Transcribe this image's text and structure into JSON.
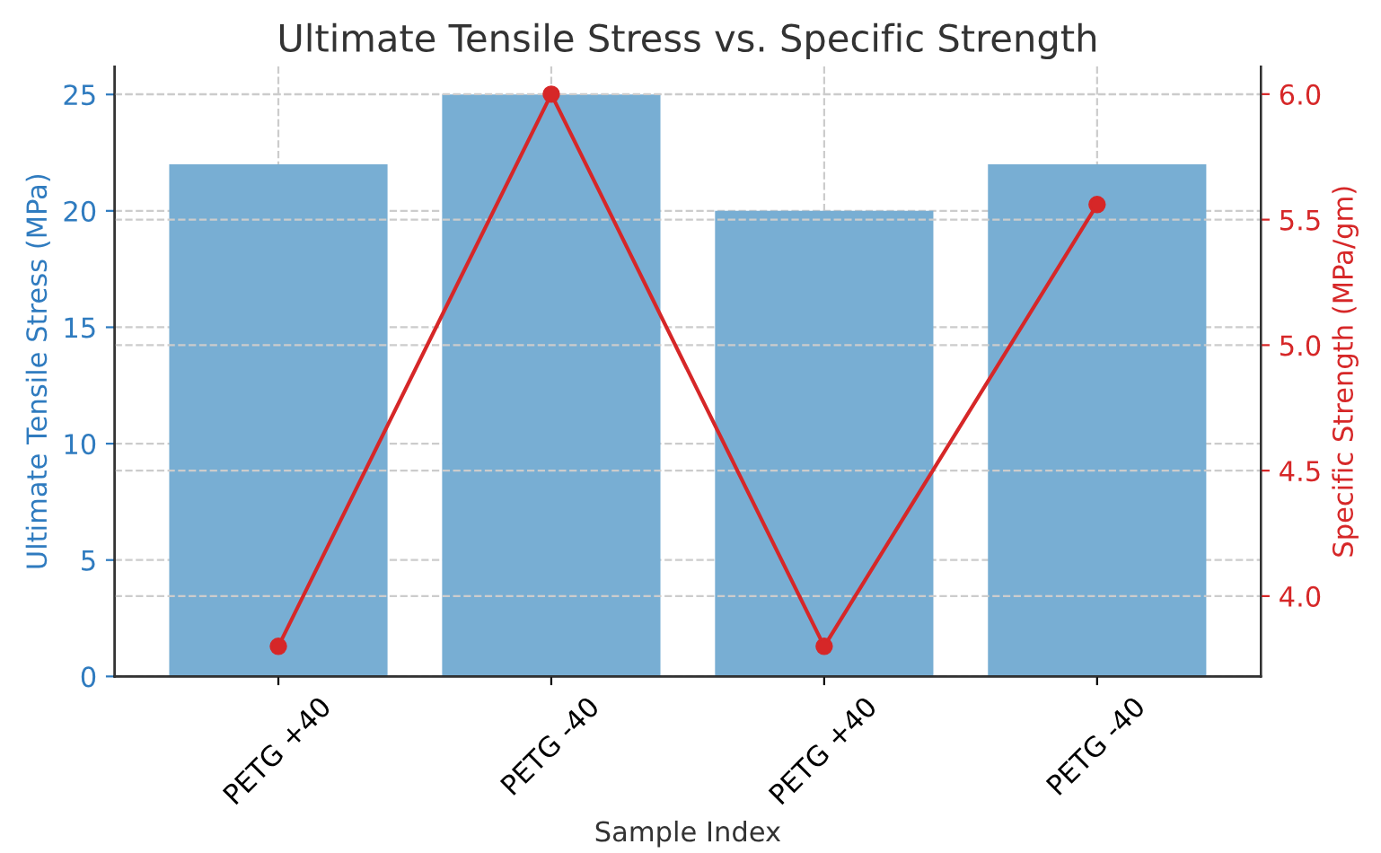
{
  "chart_data": {
    "type": "bar",
    "title": "Ultimate Tensile Stress vs. Specific Strength",
    "xlabel": "Sample Index",
    "ylabel": "Ultimate Tensile Stress (MPa)",
    "y2label": "Specific Strength (MPa/gm)",
    "categories": [
      "PETG +40",
      "PETG -40",
      "PETG +40",
      "PETG -40"
    ],
    "series": [
      {
        "color": "#78aed3",
        "values": [
          22,
          25,
          20,
          22
        ]
      },
      {
        "type": "line",
        "axis": "y2",
        "color": "#d62728",
        "values": [
          3.8,
          6.0,
          3.8,
          5.56
        ]
      }
    ],
    "ylim": [
      0,
      26.2
    ],
    "yticks": [
      0,
      5,
      10,
      15,
      20,
      25
    ],
    "y2lim": [
      3.68,
      6.11
    ],
    "y2ticks": [
      {
        "value": 4.0,
        "label": "4.0"
      },
      4.5,
      {
        "value": 5.0,
        "label": "5.0"
      },
      5.5,
      {
        "value": 6.0,
        "label": "6.0"
      }
    ],
    "grid": true,
    "marker": "circle",
    "line_style": "solid"
  }
}
